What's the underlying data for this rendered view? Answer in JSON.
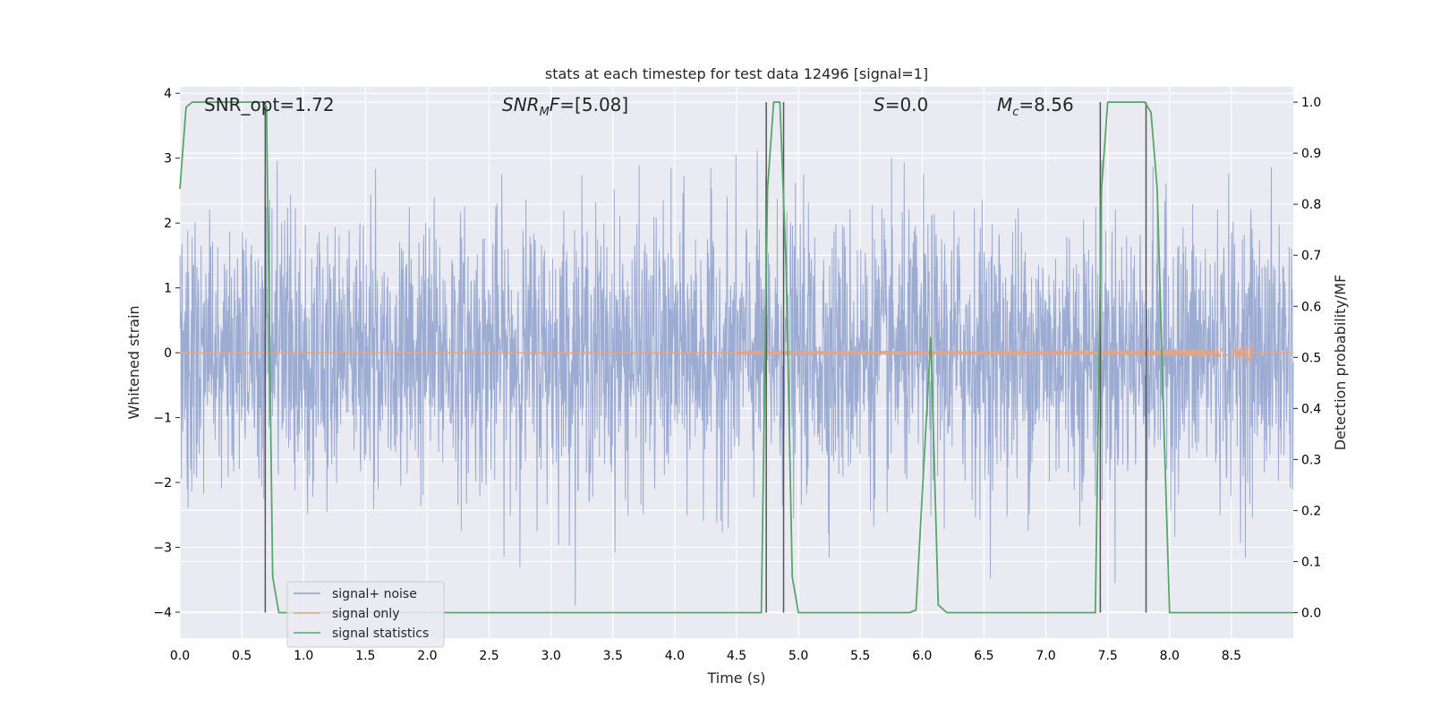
{
  "chart_data": {
    "type": "line",
    "title": "stats at each timestep for test data 12496 [signal=1]",
    "xlabel": "Time (s)",
    "ylabel_left": "Whitened strain",
    "ylabel_right": "Detection probability/MF",
    "xlim": [
      0.0,
      9.0
    ],
    "ylim_left": [
      -4.4,
      4.1
    ],
    "ylim_right": [
      -0.05,
      1.03
    ],
    "x_ticks": [
      "0.0",
      "0.5",
      "1.0",
      "1.5",
      "2.0",
      "2.5",
      "3.0",
      "3.5",
      "4.0",
      "4.5",
      "5.0",
      "5.5",
      "6.0",
      "6.5",
      "7.0",
      "7.5",
      "8.0",
      "8.5"
    ],
    "x_tick_values": [
      0.0,
      0.5,
      1.0,
      1.5,
      2.0,
      2.5,
      3.0,
      3.5,
      4.0,
      4.5,
      5.0,
      5.5,
      6.0,
      6.5,
      7.0,
      7.5,
      8.0,
      8.5
    ],
    "y_left_ticks": [
      "−4",
      "−3",
      "−2",
      "−1",
      "0",
      "1",
      "2",
      "3",
      "4"
    ],
    "y_left_tick_values": [
      -4,
      -3,
      -2,
      -1,
      0,
      1,
      2,
      3,
      4
    ],
    "y_right_ticks": [
      "0.0",
      "0.1",
      "0.2",
      "0.3",
      "0.4",
      "0.5",
      "0.6",
      "0.7",
      "0.8",
      "0.9",
      "1.0"
    ],
    "y_right_tick_values": [
      0.0,
      0.1,
      0.2,
      0.3,
      0.4,
      0.5,
      0.6,
      0.7,
      0.8,
      0.9,
      1.0
    ],
    "grid": true,
    "legend_position": "lower-left",
    "annotations": [
      {
        "text": "SNR_opt=1.72",
        "x": 0.19
      },
      {
        "text": "SNR_MF=[5.08]",
        "x": 2.6
      },
      {
        "text": "S=0.0",
        "x": 5.6
      },
      {
        "text": "M_c=8.56",
        "x": 6.6
      }
    ],
    "series": [
      {
        "name": "signal+ noise",
        "color": "#8da0cb",
        "axis": "left",
        "kind": "noise",
        "approx_envelope": 1.6
      },
      {
        "name": "signal only",
        "color": "#e5a585",
        "axis": "left",
        "kind": "chirp",
        "end_time": 8.67,
        "peak_amplitude": 0.22
      },
      {
        "name": "signal statistics",
        "color": "#55a868",
        "axis": "right",
        "x": [
          0.0,
          0.05,
          0.1,
          0.2,
          0.68,
          0.7,
          0.75,
          0.8,
          0.85,
          4.7,
          4.75,
          4.8,
          4.85,
          4.9,
          4.95,
          5.0,
          5.5,
          5.9,
          5.95,
          6.07,
          6.13,
          6.2,
          7.4,
          7.45,
          7.5,
          7.8,
          7.85,
          7.9,
          7.95,
          8.0,
          9.0
        ],
        "y": [
          0.83,
          0.99,
          1.0,
          1.0,
          1.0,
          0.99,
          0.07,
          0.0,
          0.0,
          0.0,
          0.83,
          1.0,
          1.0,
          0.68,
          0.07,
          0.0,
          0.0,
          0.0,
          0.005,
          0.54,
          0.015,
          0.0,
          0.0,
          0.83,
          1.0,
          1.0,
          0.98,
          0.83,
          0.4,
          0.0,
          0.0
        ]
      }
    ],
    "vertical_markers": [
      0.69,
      4.74,
      4.88,
      7.44,
      7.81
    ],
    "legend": {
      "items": [
        "signal+ noise",
        "signal only",
        "signal statistics"
      ]
    }
  }
}
